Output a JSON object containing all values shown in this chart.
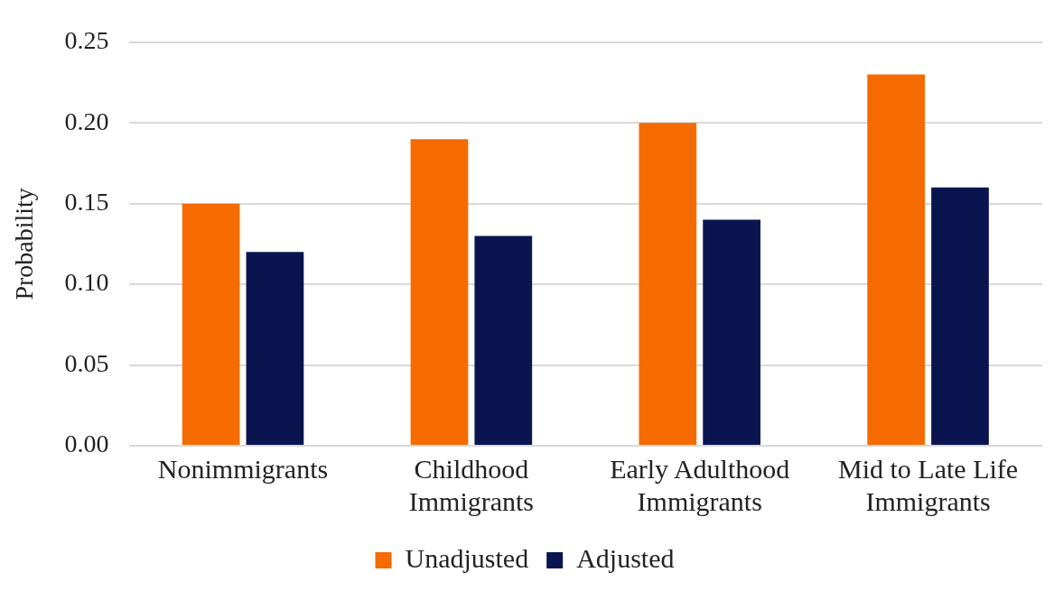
{
  "chart_data": {
    "type": "bar",
    "ylabel": "Probability",
    "categories": [
      "Nonimmigrants",
      "Childhood Immigrants",
      "Early Adulthood Immigrants",
      "Mid to Late Life Immigrants"
    ],
    "series": [
      {
        "name": "Unadjusted",
        "color": "#f56b00",
        "values": [
          0.15,
          0.19,
          0.2,
          0.23
        ]
      },
      {
        "name": "Adjusted",
        "color": "#0a1550",
        "values": [
          0.12,
          0.13,
          0.14,
          0.16
        ]
      }
    ],
    "ylim": [
      0,
      0.25
    ],
    "yticks": [
      {
        "value": 0,
        "label": "0.00"
      },
      {
        "value": 0.05,
        "label": "0.05"
      },
      {
        "value": 0.1,
        "label": "0.10"
      },
      {
        "value": 0.15,
        "label": "0.15"
      },
      {
        "value": 0.2,
        "label": "0.20"
      },
      {
        "value": 0.25,
        "label": "0.25"
      }
    ],
    "grid": "y",
    "legend": "bottom"
  }
}
